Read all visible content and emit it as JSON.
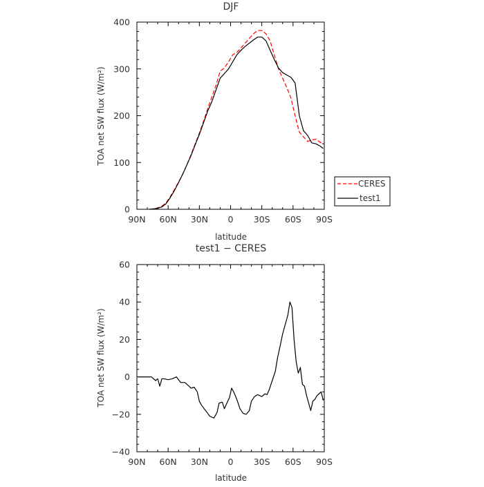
{
  "chart_data": [
    {
      "type": "line",
      "title": "DJF",
      "xlabel": "latitude",
      "ylabel": "TOA net SW flux (W/m²)",
      "xlim": [
        -90,
        90
      ],
      "ylim": [
        0,
        400
      ],
      "xticks": [
        -90,
        -60,
        -30,
        0,
        30,
        60,
        90
      ],
      "xtick_labels": [
        "90N",
        "60N",
        "30N",
        "0",
        "30S",
        "60S",
        "90S"
      ],
      "yticks": [
        0,
        100,
        200,
        300,
        400
      ],
      "ytick_labels": [
        "0",
        "100",
        "200",
        "300",
        "400"
      ],
      "grid": false,
      "legend": "outside-right",
      "series": [
        {
          "name": "CERES",
          "color": "#ff0000",
          "style": "dashed",
          "x": [
            -78,
            -74,
            -70,
            -66,
            -62,
            -58,
            -54,
            -50,
            -46,
            -42,
            -38,
            -34,
            -30,
            -26,
            -22,
            -18,
            -14,
            -10,
            -6,
            -2,
            2,
            6,
            10,
            14,
            18,
            22,
            26,
            30,
            34,
            38,
            42,
            46,
            50,
            54,
            58,
            62,
            66,
            70,
            74,
            78,
            82,
            86,
            89
          ],
          "y": [
            0,
            1,
            3,
            7,
            14,
            27,
            42,
            58,
            75,
            95,
            117,
            140,
            163,
            188,
            215,
            240,
            265,
            295,
            302,
            315,
            330,
            335,
            345,
            355,
            365,
            375,
            382,
            382,
            375,
            360,
            330,
            300,
            280,
            260,
            238,
            200,
            165,
            155,
            145,
            148,
            150,
            143,
            140
          ]
        },
        {
          "name": "test1",
          "color": "#000000",
          "style": "solid",
          "x": [
            -78,
            -74,
            -70,
            -66,
            -62,
            -58,
            -54,
            -50,
            -46,
            -42,
            -38,
            -34,
            -30,
            -26,
            -22,
            -18,
            -14,
            -10,
            -6,
            -2,
            2,
            6,
            10,
            14,
            18,
            22,
            26,
            30,
            34,
            38,
            42,
            46,
            50,
            54,
            58,
            62,
            66,
            70,
            74,
            78,
            82,
            86,
            89
          ],
          "y": [
            0,
            1,
            2,
            5,
            12,
            25,
            40,
            57,
            75,
            95,
            115,
            138,
            160,
            185,
            210,
            230,
            255,
            280,
            290,
            300,
            315,
            330,
            340,
            348,
            355,
            362,
            368,
            368,
            360,
            340,
            320,
            302,
            292,
            287,
            282,
            270,
            200,
            168,
            158,
            142,
            140,
            135,
            130
          ]
        }
      ]
    },
    {
      "type": "line",
      "title": "test1 − CERES",
      "xlabel": "latitude",
      "ylabel": "TOA net SW flux (W/m²)",
      "xlim": [
        -90,
        90
      ],
      "ylim": [
        -40,
        60
      ],
      "xticks": [
        -90,
        -60,
        -30,
        0,
        30,
        60,
        90
      ],
      "xtick_labels": [
        "90N",
        "60N",
        "30N",
        "0",
        "30S",
        "60S",
        "90S"
      ],
      "yticks": [
        -40,
        -20,
        0,
        20,
        40,
        60
      ],
      "ytick_labels": [
        "−40",
        "−20",
        "0",
        "20",
        "40",
        "60"
      ],
      "grid": false,
      "series": [
        {
          "color": "#000000",
          "style": "solid",
          "x": [
            -89,
            -76,
            -72,
            -70,
            -68,
            -66,
            -64,
            -60,
            -56,
            -52,
            -48,
            -44,
            -40,
            -38,
            -35,
            -32,
            -30,
            -28,
            -24,
            -20,
            -16,
            -13,
            -11,
            -8,
            -6,
            -4,
            -1,
            1,
            3,
            6,
            9,
            12,
            15,
            18,
            20,
            23,
            26,
            28,
            30,
            33,
            35,
            37,
            40,
            43,
            45,
            47,
            50,
            53,
            55,
            57,
            59,
            61,
            63,
            65,
            67,
            69,
            71,
            73,
            75,
            77,
            79,
            81,
            83,
            85,
            87,
            89
          ],
          "y": [
            0,
            0,
            -2,
            -1,
            -5,
            -1,
            -1,
            -1.5,
            -1,
            0,
            -3,
            -3,
            -5,
            -6,
            -5.5,
            -8,
            -13,
            -15,
            -18,
            -21,
            -22,
            -19,
            -14,
            -13.5,
            -17,
            -14.5,
            -11,
            -6,
            -8,
            -12,
            -17,
            -19.5,
            -20,
            -18,
            -13,
            -10.5,
            -9.5,
            -10,
            -10.5,
            -9,
            -9.5,
            -7,
            -2,
            3,
            10,
            15,
            23,
            29,
            33,
            40,
            37,
            20,
            8,
            2,
            5,
            -4,
            -5,
            -10,
            -14,
            -18,
            -13,
            -12,
            -10,
            -9,
            -8,
            -12.5
          ]
        }
      ]
    }
  ]
}
